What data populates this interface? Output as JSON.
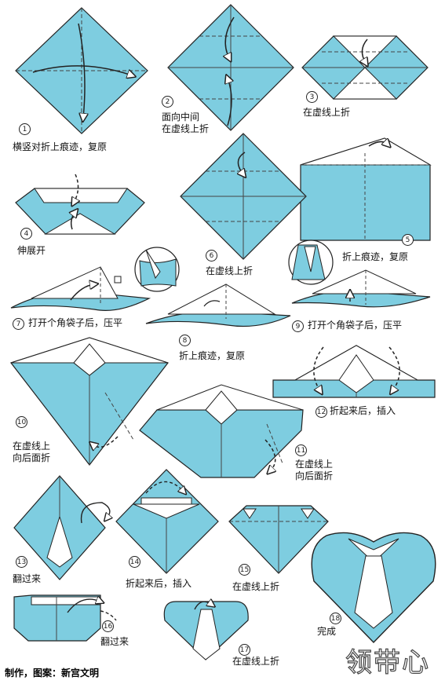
{
  "title": "领带心",
  "credit": "制作，图案：新宫文明",
  "colors": {
    "paper_blue": "#7ecde0",
    "paper_white": "#ffffff",
    "outline": "#222222",
    "crease": "#444444"
  },
  "steps": [
    {
      "num": "1",
      "text": "横竖对折上痕迹，复原"
    },
    {
      "num": "2",
      "text": "面向中间\n在虚线上折"
    },
    {
      "num": "3",
      "text": "在虚线上折"
    },
    {
      "num": "4",
      "text": "伸展开"
    },
    {
      "num": "5",
      "text": "折上痕迹，复原"
    },
    {
      "num": "6",
      "text": "在虚线上折"
    },
    {
      "num": "7",
      "text": "打开个角袋子后，压平"
    },
    {
      "num": "8",
      "text": "折上痕迹，复原"
    },
    {
      "num": "9",
      "text": "打开个角袋子后，压平"
    },
    {
      "num": "10",
      "text": "在虚线上\n向后面折"
    },
    {
      "num": "11",
      "text": "在虚线上\n向后面折"
    },
    {
      "num": "12",
      "text": "折起来后，插入"
    },
    {
      "num": "13",
      "text": "翻过来"
    },
    {
      "num": "14",
      "text": "折起来后，插入"
    },
    {
      "num": "15",
      "text": "在虚线上折"
    },
    {
      "num": "16",
      "text": "翻过来"
    },
    {
      "num": "17",
      "text": "在虚线上折"
    },
    {
      "num": "18",
      "text": "完成"
    }
  ]
}
